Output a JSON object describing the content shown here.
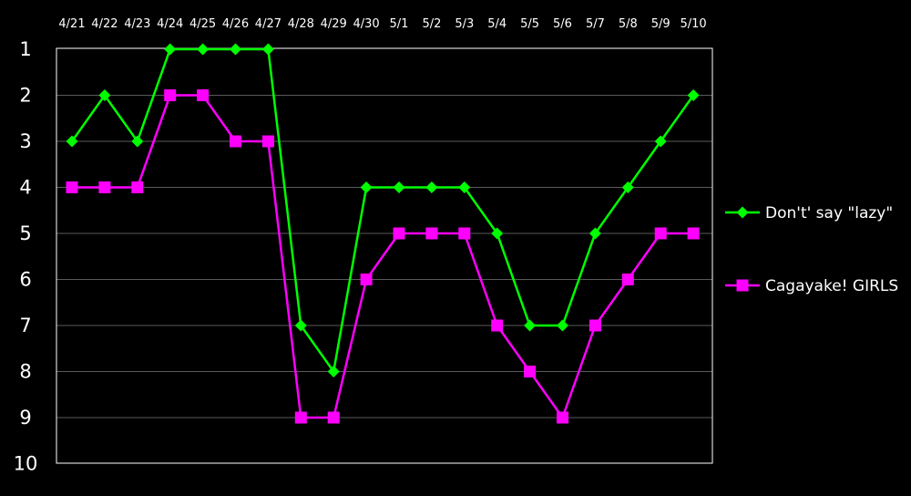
{
  "chart_data": {
    "type": "line",
    "title": "",
    "xlabel": "",
    "ylabel": "",
    "categories": [
      "4/21",
      "4/22",
      "4/23",
      "4/24",
      "4/25",
      "4/26",
      "4/27",
      "4/28",
      "4/29",
      "4/30",
      "5/1",
      "5/2",
      "5/3",
      "5/4",
      "5/5",
      "5/6",
      "5/7",
      "5/8",
      "5/9",
      "5/10"
    ],
    "y_ticks": [
      1,
      2,
      3,
      4,
      5,
      6,
      7,
      8,
      9,
      10
    ],
    "ylim": [
      1,
      10
    ],
    "y_inverted": true,
    "grid": "horizontal",
    "legend_position": "right",
    "series": [
      {
        "name": "Don't' say \"lazy\"",
        "color": "#00ff00",
        "marker": "diamond",
        "values": [
          3,
          2,
          3,
          1,
          1,
          1,
          1,
          7,
          8,
          4,
          4,
          4,
          4,
          5,
          7,
          7,
          5,
          4,
          3,
          2
        ]
      },
      {
        "name": "Cagayake! GIRLS",
        "color": "#ff00ff",
        "marker": "square",
        "values": [
          4,
          4,
          4,
          2,
          2,
          3,
          3,
          9,
          9,
          6,
          5,
          5,
          5,
          7,
          8,
          9,
          7,
          6,
          5,
          5
        ]
      }
    ]
  }
}
